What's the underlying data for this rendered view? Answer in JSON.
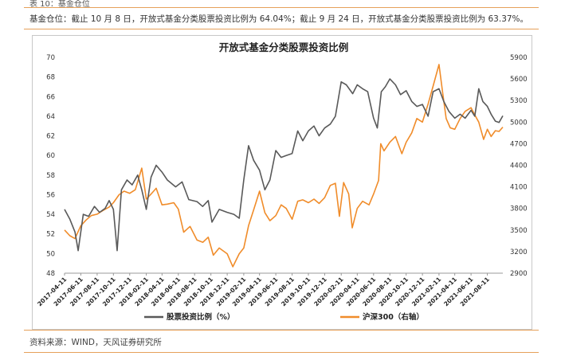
{
  "caption_top": "表 10：基金仓位",
  "summary": "基金仓位：截止 10 月 8 日，开放式基金分类股票投资比例为 64.04%；截止 9 月 24 日，开放式基金分类股票投资比例为 63.37%。",
  "source": "资料来源：WIND，天风证券研究所",
  "colors": {
    "rule": "#e6a15a",
    "fund": "#595959",
    "index": "#f08c2a"
  },
  "chart_data": {
    "type": "line",
    "title": "开放式基金分类股票投资比例",
    "y_left": {
      "min": 48,
      "max": 70,
      "ticks": [
        48,
        50,
        52,
        54,
        56,
        58,
        60,
        62,
        64,
        66,
        68,
        70
      ]
    },
    "y_right": {
      "min": 2900,
      "max": 5900,
      "ticks": [
        2900,
        3200,
        3500,
        3800,
        4100,
        4400,
        4700,
        5000,
        5300,
        5600,
        5900
      ]
    },
    "x_range": [
      "2017-04-11",
      "2021-10-08"
    ],
    "x_ticks": [
      "2017-04-11",
      "2017-06-11",
      "2017-08-11",
      "2017-10-11",
      "2017-12-11",
      "2018-02-11",
      "2018-04-11",
      "2018-06-11",
      "2018-08-11",
      "2018-10-11",
      "2018-12-11",
      "2019-02-11",
      "2019-04-11",
      "2019-06-11",
      "2019-08-11",
      "2019-10-11",
      "2019-12-11",
      "2020-02-11",
      "2020-04-11",
      "2020-06-11",
      "2020-08-11",
      "2020-10-11",
      "2020-12-11",
      "2021-02-11",
      "2021-04-11",
      "2021-06-11",
      "2021-08-11"
    ],
    "legend_position": "bottom",
    "series": [
      {
        "name": "股票投资比例（%）",
        "axis": "left",
        "points": [
          [
            "2017-04-11",
            54.5
          ],
          [
            "2017-05-01",
            53.5
          ],
          [
            "2017-05-20",
            52.2
          ],
          [
            "2017-06-01",
            50.3
          ],
          [
            "2017-06-20",
            54.0
          ],
          [
            "2017-07-10",
            53.8
          ],
          [
            "2017-08-01",
            54.8
          ],
          [
            "2017-08-20",
            54.2
          ],
          [
            "2017-09-10",
            54.6
          ],
          [
            "2017-09-25",
            55.4
          ],
          [
            "2017-10-11",
            54.5
          ],
          [
            "2017-10-25",
            50.3
          ],
          [
            "2017-11-10",
            56.5
          ],
          [
            "2017-12-01",
            57.5
          ],
          [
            "2017-12-20",
            57.0
          ],
          [
            "2018-01-10",
            58.0
          ],
          [
            "2018-01-25",
            56.5
          ],
          [
            "2018-02-11",
            54.5
          ],
          [
            "2018-03-01",
            57.8
          ],
          [
            "2018-03-20",
            59.0
          ],
          [
            "2018-04-11",
            58.3
          ],
          [
            "2018-05-01",
            57.5
          ],
          [
            "2018-06-01",
            56.8
          ],
          [
            "2018-06-25",
            57.3
          ],
          [
            "2018-07-20",
            55.5
          ],
          [
            "2018-08-20",
            55.3
          ],
          [
            "2018-09-10",
            54.8
          ],
          [
            "2018-10-01",
            55.4
          ],
          [
            "2018-10-15",
            53.2
          ],
          [
            "2018-11-11",
            54.5
          ],
          [
            "2018-12-11",
            54.2
          ],
          [
            "2019-01-05",
            54.0
          ],
          [
            "2019-01-25",
            53.6
          ],
          [
            "2019-02-11",
            57.5
          ],
          [
            "2019-03-01",
            61.0
          ],
          [
            "2019-03-20",
            59.5
          ],
          [
            "2019-04-11",
            58.5
          ],
          [
            "2019-05-01",
            56.5
          ],
          [
            "2019-05-20",
            57.5
          ],
          [
            "2019-06-11",
            60.5
          ],
          [
            "2019-07-01",
            59.8
          ],
          [
            "2019-07-20",
            60.0
          ],
          [
            "2019-08-11",
            60.2
          ],
          [
            "2019-09-01",
            62.5
          ],
          [
            "2019-09-20",
            61.5
          ],
          [
            "2019-10-11",
            62.5
          ],
          [
            "2019-11-01",
            63.0
          ],
          [
            "2019-11-20",
            62.0
          ],
          [
            "2019-12-11",
            62.8
          ],
          [
            "2020-01-01",
            63.2
          ],
          [
            "2020-01-20",
            64.0
          ],
          [
            "2020-02-11",
            67.5
          ],
          [
            "2020-03-01",
            67.2
          ],
          [
            "2020-03-25",
            66.3
          ],
          [
            "2020-04-11",
            67.2
          ],
          [
            "2020-05-01",
            66.8
          ],
          [
            "2020-05-20",
            66.5
          ],
          [
            "2020-06-11",
            63.8
          ],
          [
            "2020-06-25",
            62.8
          ],
          [
            "2020-07-10",
            66.5
          ],
          [
            "2020-07-25",
            67.0
          ],
          [
            "2020-08-11",
            67.8
          ],
          [
            "2020-09-01",
            67.2
          ],
          [
            "2020-09-20",
            66.2
          ],
          [
            "2020-10-11",
            66.6
          ],
          [
            "2020-11-01",
            65.5
          ],
          [
            "2020-11-20",
            65.0
          ],
          [
            "2020-12-11",
            65.2
          ],
          [
            "2021-01-01",
            64.0
          ],
          [
            "2021-01-20",
            66.5
          ],
          [
            "2021-02-11",
            66.8
          ],
          [
            "2021-03-01",
            65.5
          ],
          [
            "2021-03-20",
            64.5
          ],
          [
            "2021-04-11",
            63.8
          ],
          [
            "2021-05-01",
            64.2
          ],
          [
            "2021-05-20",
            63.8
          ],
          [
            "2021-06-11",
            64.6
          ],
          [
            "2021-06-25",
            64.0
          ],
          [
            "2021-07-10",
            66.8
          ],
          [
            "2021-07-25",
            65.5
          ],
          [
            "2021-08-11",
            65.0
          ],
          [
            "2021-08-25",
            64.2
          ],
          [
            "2021-09-10",
            63.5
          ],
          [
            "2021-09-24",
            63.37
          ],
          [
            "2021-10-08",
            64.04
          ]
        ]
      },
      {
        "name": "沪深300（右轴）",
        "axis": "right",
        "points": [
          [
            "2017-04-11",
            3500
          ],
          [
            "2017-05-01",
            3420
          ],
          [
            "2017-05-20",
            3380
          ],
          [
            "2017-06-11",
            3560
          ],
          [
            "2017-07-01",
            3640
          ],
          [
            "2017-07-20",
            3700
          ],
          [
            "2017-08-11",
            3720
          ],
          [
            "2017-09-01",
            3770
          ],
          [
            "2017-09-25",
            3820
          ],
          [
            "2017-10-11",
            3880
          ],
          [
            "2017-11-01",
            3990
          ],
          [
            "2017-11-20",
            4040
          ],
          [
            "2017-12-11",
            4010
          ],
          [
            "2018-01-01",
            4060
          ],
          [
            "2018-01-25",
            4360
          ],
          [
            "2018-02-11",
            3930
          ],
          [
            "2018-03-01",
            4000
          ],
          [
            "2018-03-20",
            4080
          ],
          [
            "2018-04-11",
            3850
          ],
          [
            "2018-05-01",
            3860
          ],
          [
            "2018-05-25",
            3880
          ],
          [
            "2018-06-11",
            3790
          ],
          [
            "2018-07-01",
            3470
          ],
          [
            "2018-07-25",
            3550
          ],
          [
            "2018-08-20",
            3360
          ],
          [
            "2018-09-11",
            3330
          ],
          [
            "2018-10-01",
            3400
          ],
          [
            "2018-10-20",
            3150
          ],
          [
            "2018-11-11",
            3250
          ],
          [
            "2018-12-11",
            3170
          ],
          [
            "2019-01-01",
            2990
          ],
          [
            "2019-01-25",
            3170
          ],
          [
            "2019-02-11",
            3250
          ],
          [
            "2019-03-01",
            3560
          ],
          [
            "2019-03-20",
            3780
          ],
          [
            "2019-04-11",
            4040
          ],
          [
            "2019-05-01",
            3740
          ],
          [
            "2019-05-20",
            3630
          ],
          [
            "2019-06-11",
            3700
          ],
          [
            "2019-07-01",
            3850
          ],
          [
            "2019-07-20",
            3800
          ],
          [
            "2019-08-11",
            3650
          ],
          [
            "2019-09-01",
            3900
          ],
          [
            "2019-09-20",
            3920
          ],
          [
            "2019-10-11",
            3880
          ],
          [
            "2019-11-01",
            3930
          ],
          [
            "2019-11-20",
            3870
          ],
          [
            "2019-12-11",
            3950
          ],
          [
            "2020-01-01",
            4120
          ],
          [
            "2020-01-20",
            4150
          ],
          [
            "2020-02-04",
            3690
          ],
          [
            "2020-02-20",
            4160
          ],
          [
            "2020-03-10",
            4000
          ],
          [
            "2020-03-23",
            3530
          ],
          [
            "2020-04-11",
            3800
          ],
          [
            "2020-05-01",
            3900
          ],
          [
            "2020-05-25",
            3850
          ],
          [
            "2020-06-11",
            4000
          ],
          [
            "2020-06-30",
            4190
          ],
          [
            "2020-07-08",
            4700
          ],
          [
            "2020-07-20",
            4600
          ],
          [
            "2020-08-11",
            4720
          ],
          [
            "2020-09-01",
            4800
          ],
          [
            "2020-09-25",
            4560
          ],
          [
            "2020-10-11",
            4720
          ],
          [
            "2020-11-01",
            4850
          ],
          [
            "2020-11-20",
            5050
          ],
          [
            "2020-12-11",
            5000
          ],
          [
            "2021-01-01",
            5250
          ],
          [
            "2021-01-20",
            5500
          ],
          [
            "2021-02-11",
            5800
          ],
          [
            "2021-02-25",
            5400
          ],
          [
            "2021-03-10",
            5050
          ],
          [
            "2021-03-25",
            4920
          ],
          [
            "2021-04-11",
            4900
          ],
          [
            "2021-05-01",
            5050
          ],
          [
            "2021-05-20",
            5150
          ],
          [
            "2021-06-11",
            5200
          ],
          [
            "2021-06-25",
            5100
          ],
          [
            "2021-07-10",
            5000
          ],
          [
            "2021-07-28",
            4760
          ],
          [
            "2021-08-11",
            4900
          ],
          [
            "2021-08-25",
            4800
          ],
          [
            "2021-09-10",
            4880
          ],
          [
            "2021-09-24",
            4870
          ],
          [
            "2021-10-08",
            4930
          ]
        ]
      }
    ]
  }
}
